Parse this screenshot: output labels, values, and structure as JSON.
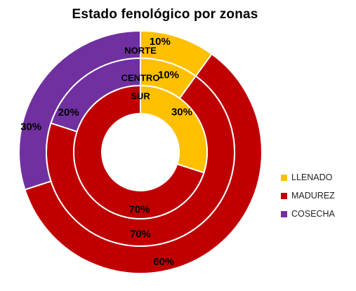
{
  "chart_data": {
    "type": "pie",
    "title": "Estado  fenológico  por zonas",
    "categories": [
      "LLENADO",
      "MADUREZ",
      "COSECHA"
    ],
    "colors": [
      "#ffc000",
      "#c00000",
      "#7030a0"
    ],
    "series": [
      {
        "name": "NORTE",
        "values": [
          10,
          60,
          30
        ],
        "labels": [
          "10%",
          "60%",
          "30%"
        ]
      },
      {
        "name": "CENTRO",
        "values": [
          10,
          70,
          20
        ],
        "labels": [
          "10%",
          "70%",
          "20%"
        ]
      },
      {
        "name": "SUR",
        "values": [
          30,
          70,
          0
        ],
        "labels": [
          "30%",
          "70%",
          ""
        ]
      }
    ],
    "legend_position": "right"
  }
}
